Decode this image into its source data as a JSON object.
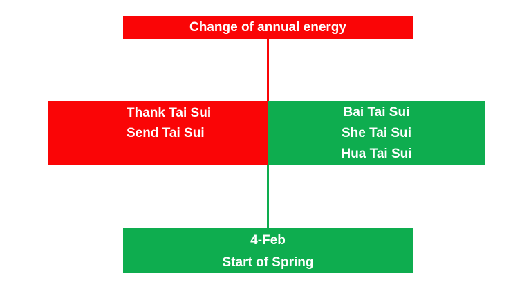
{
  "diagram": {
    "title_box": {
      "label": "Change of annual energy"
    },
    "left_box": {
      "lines": {
        "0": "Thank Tai Sui",
        "1": "Send Tai Sui"
      }
    },
    "right_box": {
      "lines": {
        "0": "Bai Tai Sui",
        "1": "She Tai Sui",
        "2": "Hua Tai Sui"
      }
    },
    "bottom_box": {
      "lines": {
        "0": "4-Feb",
        "1": "Start of Spring"
      }
    },
    "colors": {
      "red": "#FA0506",
      "green": "#0EAD4F",
      "text": "#FFFFFF",
      "background": "#FFFFFF"
    }
  }
}
